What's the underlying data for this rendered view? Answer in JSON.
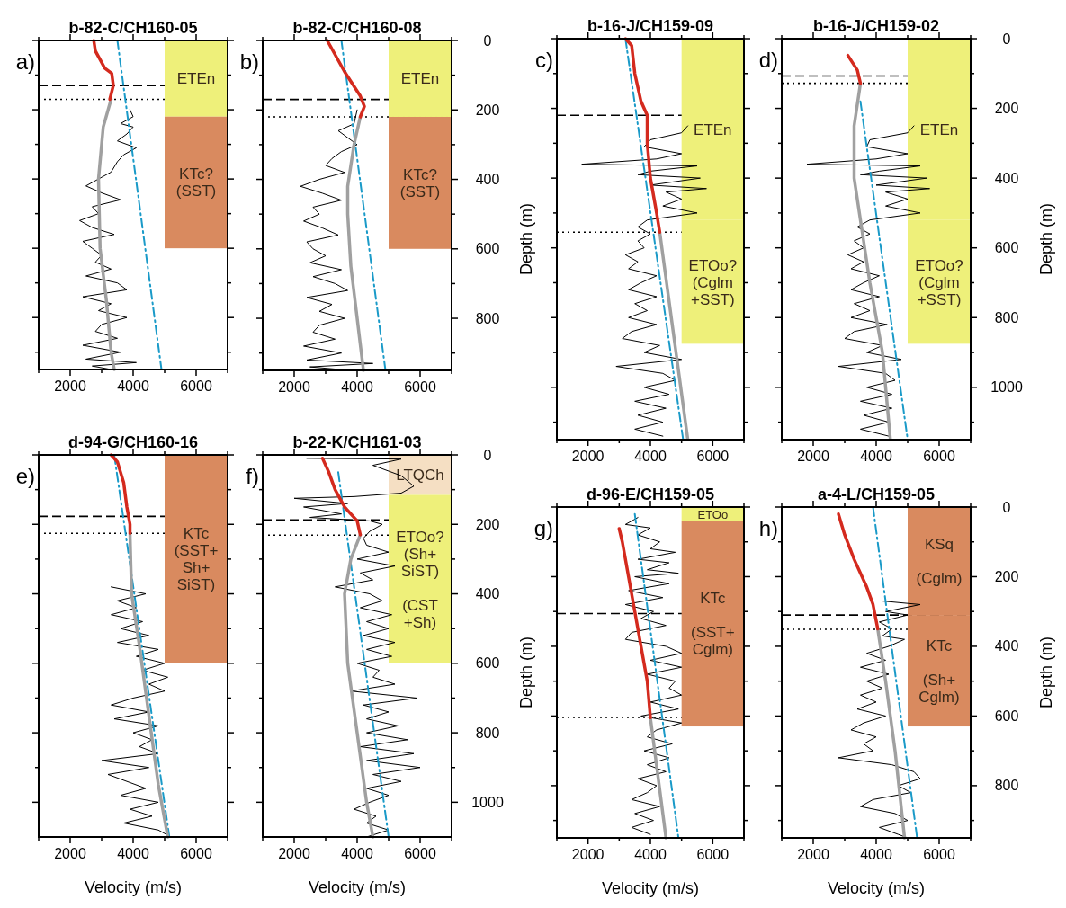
{
  "chart_data": [
    {
      "type": "line",
      "title": "b-82-C/CH160-05",
      "annotations": [
        "a)"
      ],
      "xlim": [
        1000,
        7000
      ],
      "ylim": [
        950,
        0
      ],
      "tick_labels": "x",
      "xticks": [
        {
          "value": 1000,
          "label": null
        },
        2000,
        {
          "value": 3000,
          "label": null
        },
        4000,
        {
          "value": 5000,
          "label": null
        },
        6000,
        {
          "value": 7000,
          "label": null
        }
      ],
      "yticks": [
        0,
        {
          "value": 100,
          "label": null
        },
        200,
        {
          "value": 300,
          "label": null
        },
        400,
        {
          "value": 500,
          "label": null
        },
        600,
        {
          "value": 700,
          "label": null
        },
        800,
        {
          "value": 900,
          "label": null
        }
      ],
      "series": [
        {
          "color": "#000000",
          "line_style": "solid",
          "x": [
            3900,
            4000,
            3600,
            4000,
            3800,
            3500,
            4100,
            3700,
            3500,
            3300,
            2900,
            2500,
            3000,
            3600,
            2700,
            2900,
            2300,
            2700,
            3400,
            2400,
            2700,
            3000,
            2800,
            3300,
            2500,
            3500,
            3800,
            2400,
            3300,
            2900,
            3800,
            3000,
            2800,
            3500,
            2400,
            3600,
            2500,
            4100,
            2700,
            3300
          ],
          "values": [
            200,
            220,
            240,
            250,
            270,
            290,
            310,
            330,
            350,
            380,
            400,
            420,
            440,
            460,
            480,
            500,
            520,
            540,
            560,
            580,
            600,
            620,
            640,
            660,
            680,
            700,
            720,
            740,
            760,
            780,
            800,
            820,
            840,
            860,
            880,
            900,
            920,
            930,
            940,
            950
          ]
        },
        {
          "color": "#1a9ac8",
          "line_style": "dashdot",
          "x": [
            3500,
            4900
          ],
          "values": [
            0,
            950
          ]
        },
        {
          "color": "#a0a0a0",
          "line_style": "solid",
          "x": [
            3300,
            3050,
            2900,
            2950,
            3150,
            3300,
            3400
          ],
          "values": [
            170,
            250,
            400,
            600,
            750,
            900,
            950
          ]
        },
        {
          "color": "#d42a1e",
          "line_style": "solid",
          "x": [
            2750,
            2800,
            3100,
            3320,
            3370,
            3260
          ],
          "values": [
            0,
            30,
            80,
            95,
            130,
            170
          ]
        }
      ],
      "ref_lines": [
        {
          "axis": "y",
          "value": 130,
          "line_style": "dashed"
        },
        {
          "axis": "y",
          "value": 170,
          "line_style": "dotted"
        }
      ],
      "bands": [
        {
          "axis": "y",
          "from": 0,
          "to": 220,
          "label": "ETEn",
          "color": "#eef07a"
        },
        {
          "axis": "y",
          "from": 220,
          "to": 600,
          "label": "KTc?\n(SST)",
          "color": "#d98a5f"
        }
      ]
    },
    {
      "type": "line",
      "title": "b-82-C/CH160-08",
      "annotations": [
        "b)"
      ],
      "xlim": [
        1000,
        7000
      ],
      "ylim": [
        950,
        0
      ],
      "xticks": [
        {
          "value": 1000,
          "label": null
        },
        2000,
        {
          "value": 3000,
          "label": null
        },
        4000,
        {
          "value": 5000,
          "label": null
        },
        6000,
        {
          "value": 7000,
          "label": null
        }
      ],
      "yticks": [
        0,
        {
          "value": 100,
          "label": null
        },
        200,
        {
          "value": 300,
          "label": null
        },
        400,
        {
          "value": 500,
          "label": null
        },
        600,
        {
          "value": 700,
          "label": null
        },
        800,
        {
          "value": 900,
          "label": null
        }
      ],
      "series": [
        {
          "color": "#000000",
          "line_style": "solid",
          "x": [
            4000,
            3900,
            3400,
            3700,
            4000,
            3500,
            3200,
            3000,
            3600,
            2800,
            2200,
            2900,
            3500,
            2600,
            2800,
            2300,
            2900,
            3400,
            2400,
            2600,
            3000,
            2500,
            3500,
            2600,
            3300,
            3700,
            2400,
            3200,
            2800,
            3600,
            2800,
            2600,
            3300,
            2300,
            3500,
            2400,
            4500,
            2500,
            3800
          ],
          "values": [
            200,
            240,
            260,
            280,
            300,
            320,
            340,
            360,
            380,
            400,
            420,
            440,
            460,
            480,
            500,
            520,
            540,
            560,
            580,
            600,
            620,
            640,
            660,
            680,
            700,
            720,
            740,
            760,
            780,
            800,
            820,
            840,
            860,
            880,
            900,
            920,
            930,
            940,
            950
          ]
        },
        {
          "color": "#1a9ac8",
          "line_style": "dashdot",
          "x": [
            3500,
            4900
          ],
          "values": [
            0,
            950
          ]
        },
        {
          "color": "#a0a0a0",
          "line_style": "solid",
          "x": [
            4100,
            3900,
            3700,
            3700,
            3800,
            4000,
            4200
          ],
          "values": [
            220,
            300,
            420,
            500,
            650,
            800,
            950
          ]
        },
        {
          "color": "#d42a1e",
          "line_style": "solid",
          "x": [
            3050,
            3600,
            4100,
            4230,
            4100
          ],
          "values": [
            0,
            90,
            160,
            190,
            220
          ]
        }
      ],
      "ref_lines": [
        {
          "axis": "y",
          "value": 170,
          "line_style": "dashed"
        },
        {
          "axis": "y",
          "value": 220,
          "line_style": "dotted"
        }
      ],
      "bands": [
        {
          "axis": "y",
          "from": 0,
          "to": 220,
          "label": "ETEn",
          "color": "#eef07a"
        },
        {
          "axis": "y",
          "from": 220,
          "to": 600,
          "label": "KTc?\n(SST)",
          "color": "#d98a5f"
        }
      ]
    },
    {
      "type": "line",
      "title": "b-16-J/CH159-09",
      "ylabel": "Depth (m)",
      "annotations": [
        "c)"
      ],
      "xlim": [
        1000,
        7000
      ],
      "ylim": [
        1150,
        0
      ],
      "tick_labels": "x",
      "xticks": [
        {
          "value": 1000,
          "label": null
        },
        2000,
        {
          "value": 3000,
          "label": null
        },
        4000,
        {
          "value": 5000,
          "label": null
        },
        6000,
        {
          "value": 7000,
          "label": null
        }
      ],
      "yticks": [
        0,
        {
          "value": 100,
          "label": null
        },
        200,
        {
          "value": 300,
          "label": null
        },
        400,
        {
          "value": 500,
          "label": null
        },
        600,
        {
          "value": 700,
          "label": null
        },
        800,
        {
          "value": 900,
          "label": null
        },
        1000,
        {
          "value": 1100,
          "label": null
        }
      ],
      "series": [
        {
          "color": "#000000",
          "line_style": "solid",
          "x": [
            5200,
            5000,
            4000,
            3800,
            5000,
            4200,
            1800,
            5500,
            4000,
            3600,
            5600,
            4000,
            5800,
            4500,
            5000,
            4400,
            5500,
            3900,
            3600,
            4000,
            3600,
            3800,
            3200,
            3600,
            3300,
            4200,
            3700,
            3300,
            4200,
            3500,
            3900,
            3300,
            4200,
            3400,
            3100,
            4300,
            3800,
            5000,
            2900,
            4400,
            4800,
            3800,
            4600,
            3500,
            4500,
            3600,
            4400,
            3500,
            4400
          ],
          "values": [
            250,
            270,
            290,
            310,
            330,
            345,
            360,
            365,
            380,
            390,
            400,
            420,
            430,
            440,
            460,
            480,
            500,
            520,
            540,
            560,
            580,
            600,
            620,
            640,
            660,
            680,
            700,
            720,
            740,
            760,
            780,
            800,
            820,
            840,
            860,
            880,
            900,
            920,
            940,
            960,
            980,
            1000,
            1020,
            1040,
            1060,
            1080,
            1100,
            1120,
            1140
          ]
        },
        {
          "color": "#1a9ac8",
          "line_style": "dashdot",
          "x": [
            3200,
            5050
          ],
          "values": [
            0,
            1150
          ]
        },
        {
          "color": "#a0a0a0",
          "line_style": "solid",
          "x": [
            4300,
            5200
          ],
          "values": [
            555,
            1150
          ]
        },
        {
          "color": "#d42a1e",
          "line_style": "solid",
          "x": [
            3200,
            3400,
            3500,
            3700,
            3900,
            3900,
            4000,
            4200,
            4300
          ],
          "values": [
            0,
            20,
            100,
            180,
            220,
            300,
            400,
            500,
            555
          ]
        }
      ],
      "ref_lines": [
        {
          "axis": "y",
          "value": 220,
          "line_style": "dashed"
        },
        {
          "axis": "y",
          "value": 555,
          "line_style": "dotted"
        }
      ],
      "bands": [
        {
          "axis": "y",
          "from": 0,
          "to": 520,
          "label": "ETEn",
          "color": "#eef07a"
        },
        {
          "axis": "y",
          "from": 520,
          "to": 875,
          "label": "ETOo?\n(Cglm\n+SST)",
          "color": "#eef07a"
        }
      ]
    },
    {
      "type": "line",
      "title": "b-16-J/CH159-02",
      "ylabel": "Depth (m)",
      "annotations": [
        "d)"
      ],
      "xlim": [
        1000,
        7000
      ],
      "ylim": [
        1150,
        0
      ],
      "xticks": [
        {
          "value": 1000,
          "label": null
        },
        2000,
        {
          "value": 3000,
          "label": null
        },
        4000,
        {
          "value": 5000,
          "label": null
        },
        6000,
        {
          "value": 7000,
          "label": null
        }
      ],
      "yticks": [
        0,
        {
          "value": 100,
          "label": null
        },
        200,
        {
          "value": 300,
          "label": null
        },
        400,
        {
          "value": 500,
          "label": null
        },
        600,
        {
          "value": 700,
          "label": null
        },
        800,
        {
          "value": 900,
          "label": null
        },
        1000,
        {
          "value": 1100,
          "label": null
        }
      ],
      "series": [
        {
          "color": "#000000",
          "line_style": "solid",
          "x": [
            5200,
            5000,
            3800,
            3700,
            5000,
            4000,
            1800,
            5400,
            4100,
            3500,
            5600,
            4000,
            5700,
            4300,
            5000,
            4300,
            5400,
            3800,
            3400,
            3800,
            3300,
            3600,
            3100,
            3600,
            3200,
            4100,
            3600,
            3200,
            4100,
            3300,
            3800,
            3200,
            4350,
            3300,
            3000,
            4200,
            3700,
            4800,
            2800,
            4300,
            4600,
            3700,
            4500,
            3500,
            4500,
            3600,
            4400,
            3500,
            4400
          ],
          "values": [
            250,
            270,
            290,
            310,
            330,
            345,
            360,
            365,
            380,
            390,
            400,
            420,
            430,
            440,
            460,
            480,
            500,
            520,
            540,
            560,
            580,
            600,
            620,
            640,
            660,
            680,
            700,
            720,
            740,
            760,
            780,
            800,
            820,
            840,
            860,
            880,
            900,
            920,
            940,
            960,
            980,
            1000,
            1020,
            1040,
            1060,
            1080,
            1100,
            1120,
            1140
          ]
        },
        {
          "color": "#1a9ac8",
          "line_style": "dashdot",
          "x": [
            3500,
            5000
          ],
          "values": [
            180,
            1150
          ]
        },
        {
          "color": "#a0a0a0",
          "line_style": "solid",
          "x": [
            3500,
            3300,
            3300,
            3500,
            3800,
            4200,
            4450
          ],
          "values": [
            128,
            250,
            400,
            520,
            700,
            900,
            1150
          ]
        },
        {
          "color": "#d42a1e",
          "line_style": "solid",
          "x": [
            3100,
            3400,
            3500
          ],
          "values": [
            48,
            90,
            128
          ]
        }
      ],
      "ref_lines": [
        {
          "axis": "y",
          "value": 107,
          "line_style": "dashed"
        },
        {
          "axis": "y",
          "value": 128,
          "line_style": "dotted"
        }
      ],
      "bands": [
        {
          "axis": "y",
          "from": 0,
          "to": 520,
          "label": "ETEn",
          "color": "#eef07a"
        },
        {
          "axis": "y",
          "from": 520,
          "to": 875,
          "label": "ETOo?\n(Cglm\n+SST)",
          "color": "#eef07a"
        }
      ]
    },
    {
      "type": "line",
      "title": "d-94-G/CH160-16",
      "xlabel": "Velocity (m/s)",
      "annotations": [
        "e)"
      ],
      "xlim": [
        1000,
        7000
      ],
      "ylim": [
        1100,
        0
      ],
      "tick_labels": "x",
      "xticks": [
        {
          "value": 1000,
          "label": null
        },
        2000,
        {
          "value": 3000,
          "label": null
        },
        4000,
        {
          "value": 5000,
          "label": null
        },
        6000,
        {
          "value": 7000,
          "label": null
        }
      ],
      "yticks": [
        0,
        {
          "value": 100,
          "label": null
        },
        200,
        {
          "value": 300,
          "label": null
        },
        400,
        {
          "value": 500,
          "label": null
        },
        600,
        {
          "value": 700,
          "label": null
        },
        800,
        {
          "value": 900,
          "label": null
        },
        1000
      ],
      "series": [
        {
          "color": "#000000",
          "line_style": "solid",
          "x": [
            3300,
            4400,
            3500,
            4100,
            3300,
            4300,
            3600,
            4500,
            3500,
            4800,
            4100,
            5000,
            4300,
            5100,
            4500,
            5000,
            4000,
            3300,
            4500,
            3400,
            4800,
            4000,
            4600,
            4200,
            4800,
            3000,
            4500,
            3200,
            3800,
            4400,
            3600,
            4800,
            3900,
            4600,
            3700,
            4800,
            5200
          ],
          "values": [
            380,
            400,
            420,
            440,
            460,
            480,
            500,
            520,
            540,
            560,
            580,
            600,
            620,
            640,
            660,
            680,
            700,
            720,
            740,
            760,
            780,
            800,
            820,
            840,
            860,
            880,
            900,
            920,
            940,
            960,
            980,
            1000,
            1020,
            1040,
            1060,
            1080,
            1100
          ]
        },
        {
          "color": "#1a9ac8",
          "line_style": "dashdot",
          "x": [
            3400,
            5150
          ],
          "values": [
            0,
            1100
          ]
        },
        {
          "color": "#a0a0a0",
          "line_style": "solid",
          "x": [
            3900,
            3950,
            4200,
            4500,
            4800,
            5100
          ],
          "values": [
            226,
            400,
            550,
            750,
            950,
            1100
          ]
        },
        {
          "color": "#d42a1e",
          "line_style": "solid",
          "x": [
            3300,
            3500,
            3700,
            3800,
            3900,
            3900
          ],
          "values": [
            0,
            20,
            80,
            150,
            200,
            226
          ]
        }
      ],
      "ref_lines": [
        {
          "axis": "y",
          "value": 177,
          "line_style": "dashed"
        },
        {
          "axis": "y",
          "value": 226,
          "line_style": "dotted"
        }
      ],
      "bands": [
        {
          "axis": "y",
          "from": 0,
          "to": 600,
          "label": "KTc\n(SST+\nSh+\nSiST)",
          "color": "#d98a5f"
        }
      ]
    },
    {
      "type": "line",
      "title": "b-22-K/CH161-03",
      "xlabel": "Velocity (m/s)",
      "annotations": [
        "f)"
      ],
      "xlim": [
        1000,
        7000
      ],
      "ylim": [
        1100,
        0
      ],
      "xticks": [
        {
          "value": 1000,
          "label": null
        },
        2000,
        {
          "value": 3000,
          "label": null
        },
        4000,
        {
          "value": 5000,
          "label": null
        },
        6000,
        {
          "value": 7000,
          "label": null
        }
      ],
      "yticks": [
        0,
        {
          "value": 100,
          "label": null
        },
        200,
        {
          "value": 300,
          "label": null
        },
        400,
        {
          "value": 500,
          "label": null
        },
        600,
        {
          "value": 700,
          "label": null
        },
        800,
        {
          "value": 900,
          "label": null
        },
        1000
      ],
      "series": [
        {
          "color": "#000000",
          "line_style": "solid",
          "x": [
            2400,
            5400,
            4500,
            5400,
            5800,
            5400,
            3900,
            2000,
            3700,
            2300,
            3500,
            2500,
            4400,
            4800,
            4400,
            4200,
            4300,
            5000,
            4000,
            5200,
            4100,
            4500,
            3300,
            4400,
            4800,
            4100,
            5100,
            4300,
            5000,
            4200,
            5200,
            4300,
            5100,
            4000,
            4700,
            4500,
            5200,
            3800,
            5900,
            4200,
            5000,
            4300,
            5300,
            4300,
            5600,
            4100,
            5800,
            4300,
            6000,
            4500,
            5400,
            4300,
            5000,
            4400,
            3900,
            4600,
            4300,
            5000,
            4300
          ],
          "values": [
            10,
            12,
            30,
            60,
            90,
            110,
            120,
            125,
            140,
            150,
            170,
            180,
            190,
            200,
            220,
            240,
            260,
            280,
            300,
            320,
            340,
            360,
            380,
            400,
            420,
            440,
            460,
            480,
            500,
            520,
            540,
            560,
            580,
            600,
            620,
            640,
            660,
            680,
            700,
            720,
            740,
            760,
            780,
            800,
            820,
            840,
            860,
            880,
            900,
            920,
            940,
            960,
            980,
            1000,
            1020,
            1040,
            1060,
            1080,
            1100
          ]
        },
        {
          "color": "#1a9ac8",
          "line_style": "dashdot",
          "x": [
            3400,
            5000
          ],
          "values": [
            50,
            1100
          ]
        },
        {
          "color": "#a0a0a0",
          "line_style": "solid",
          "x": [
            4100,
            3800,
            3600,
            3700,
            4000,
            4300,
            4500
          ],
          "values": [
            230,
            300,
            400,
            600,
            800,
            1000,
            1100
          ]
        },
        {
          "color": "#d42a1e",
          "line_style": "solid",
          "x": [
            2900,
            3100,
            3300,
            3600,
            4000,
            4100
          ],
          "values": [
            10,
            50,
            100,
            150,
            190,
            230
          ]
        }
      ],
      "ref_lines": [
        {
          "axis": "y",
          "value": 187,
          "line_style": "dashed"
        },
        {
          "axis": "y",
          "value": 231,
          "line_style": "dotted"
        }
      ],
      "bands": [
        {
          "axis": "y",
          "from": 0,
          "to": 115,
          "label": "LTQCh",
          "color": "#f5dfc3"
        },
        {
          "axis": "y",
          "from": 115,
          "to": 600,
          "label": "ETOo?\n(Sh+\nSiST)\n\n(CST\n+Sh)",
          "color": "#eef07a"
        }
      ]
    },
    {
      "type": "line",
      "title": "d-96-E/CH159-05",
      "xlabel": "Velocity (m/s)",
      "ylabel": "Depth (m)",
      "annotations": [
        "g)"
      ],
      "xlim": [
        1000,
        7000
      ],
      "ylim": [
        950,
        0
      ],
      "tick_labels": "x",
      "xticks": [
        {
          "value": 1000,
          "label": null
        },
        2000,
        {
          "value": 3000,
          "label": null
        },
        4000,
        {
          "value": 5000,
          "label": null
        },
        6000,
        {
          "value": 7000,
          "label": null
        }
      ],
      "yticks": [
        0,
        {
          "value": 100,
          "label": null
        },
        200,
        {
          "value": 300,
          "label": null
        },
        400,
        {
          "value": 500,
          "label": null
        },
        600,
        {
          "value": 700,
          "label": null
        },
        800,
        {
          "value": 900,
          "label": null
        }
      ],
      "series": [
        {
          "color": "#000000",
          "line_style": "solid",
          "x": [
            3600,
            3200,
            4000,
            3600,
            4300,
            4000,
            4800,
            3600,
            4600,
            3900,
            4900,
            3500,
            4600,
            3300,
            4400,
            3200,
            4100,
            3700,
            4500,
            3400,
            3200,
            4500,
            5000,
            4000,
            5000,
            3900,
            4800,
            4600,
            5000,
            4000,
            4900,
            3700,
            5000,
            4200,
            3900,
            4700,
            3800,
            4600,
            3900,
            4500,
            3600,
            4200,
            3900,
            3400,
            4300,
            3500,
            4100,
            3400,
            4000
          ],
          "values": [
            30,
            50,
            60,
            80,
            100,
            120,
            130,
            150,
            160,
            180,
            190,
            200,
            220,
            240,
            260,
            280,
            300,
            320,
            340,
            360,
            380,
            400,
            420,
            440,
            460,
            480,
            500,
            520,
            540,
            560,
            580,
            600,
            620,
            640,
            660,
            680,
            700,
            720,
            740,
            760,
            780,
            800,
            820,
            840,
            860,
            880,
            900,
            920,
            940
          ]
        },
        {
          "color": "#1a9ac8",
          "line_style": "dashdot",
          "x": [
            3500,
            4900
          ],
          "values": [
            20,
            950
          ]
        },
        {
          "color": "#a0a0a0",
          "line_style": "solid",
          "x": [
            4000,
            4500
          ],
          "values": [
            605,
            950
          ]
        },
        {
          "color": "#d42a1e",
          "line_style": "solid",
          "x": [
            3000,
            3100,
            3300,
            3500,
            3700,
            3900,
            4000
          ],
          "values": [
            62,
            100,
            200,
            300,
            400,
            500,
            605
          ]
        }
      ],
      "ref_lines": [
        {
          "axis": "y",
          "value": 306,
          "line_style": "dashed"
        },
        {
          "axis": "y",
          "value": 604,
          "line_style": "dotted"
        }
      ],
      "bands": [
        {
          "axis": "y",
          "from": 0,
          "to": 40,
          "label": "ETOo",
          "color": "#eef07a"
        },
        {
          "axis": "y",
          "from": 40,
          "to": 630,
          "label": "KTc\n\n(SST+\nCglm)",
          "color": "#d98a5f"
        }
      ]
    },
    {
      "type": "line",
      "title": "a-4-L/CH159-05",
      "xlabel": "Velocity (m/s)",
      "ylabel": "Depth (m)",
      "annotations": [
        "h)"
      ],
      "xlim": [
        1000,
        7000
      ],
      "ylim": [
        950,
        0
      ],
      "xticks": [
        {
          "value": 1000,
          "label": null
        },
        2000,
        {
          "value": 3000,
          "label": null
        },
        4000,
        {
          "value": 5000,
          "label": null
        },
        6000,
        {
          "value": 7000,
          "label": null
        }
      ],
      "yticks": [
        0,
        {
          "value": 100,
          "label": null
        },
        200,
        {
          "value": 300,
          "label": null
        },
        400,
        {
          "value": 500,
          "label": null
        },
        600,
        {
          "value": 700,
          "label": null
        },
        800,
        {
          "value": 900,
          "label": null
        }
      ],
      "series": [
        {
          "color": "#000000",
          "line_style": "solid",
          "x": [
            4200,
            5400,
            4300,
            5000,
            4100,
            4500,
            4200,
            4900,
            4400,
            3700,
            4300,
            3500,
            4400,
            3700,
            4200,
            3500,
            4000,
            3400,
            4300,
            3600,
            3200,
            4000,
            3600,
            3900,
            2800,
            4500,
            5200,
            5400,
            4700,
            5100,
            3900,
            3500,
            4600,
            5000,
            4100,
            4700,
            5000
          ],
          "values": [
            270,
            280,
            300,
            310,
            330,
            350,
            370,
            380,
            400,
            420,
            440,
            460,
            480,
            500,
            520,
            540,
            560,
            580,
            600,
            620,
            640,
            660,
            680,
            700,
            720,
            740,
            760,
            780,
            800,
            820,
            840,
            860,
            880,
            900,
            920,
            940,
            950
          ]
        },
        {
          "color": "#1a9ac8",
          "line_style": "dashdot",
          "x": [
            3900,
            5300
          ],
          "values": [
            0,
            950
          ]
        },
        {
          "color": "#a0a0a0",
          "line_style": "solid",
          "x": [
            4050,
            4300,
            4600,
            4900
          ],
          "values": [
            350,
            500,
            700,
            950
          ]
        },
        {
          "color": "#d42a1e",
          "line_style": "solid",
          "x": [
            2800,
            3000,
            3300,
            3700,
            3900,
            4050
          ],
          "values": [
            20,
            80,
            150,
            230,
            280,
            350
          ]
        }
      ],
      "ref_lines": [
        {
          "axis": "y",
          "value": 310,
          "line_style": "dashed"
        },
        {
          "axis": "y",
          "value": 351,
          "line_style": "dotted"
        }
      ],
      "bands": [
        {
          "axis": "y",
          "from": 0,
          "to": 310,
          "label": "KSq\n\n(Cglm)",
          "color": "#d98a5f"
        },
        {
          "axis": "y",
          "from": 310,
          "to": 630,
          "label": "KTc\n\n(Sh+\nCglm)",
          "color": "#d98a5f"
        }
      ]
    }
  ]
}
